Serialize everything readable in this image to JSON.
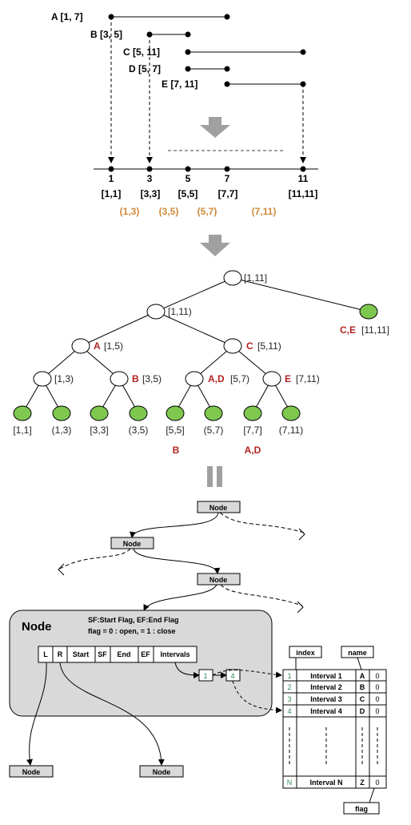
{
  "intervals": [
    {
      "label": "A [1, 7]"
    },
    {
      "label": "B [3, 5]"
    },
    {
      "label": "C [5, 11]"
    },
    {
      "label": "D [5, 7]"
    },
    {
      "label": "E [7, 11]"
    }
  ],
  "axis": {
    "ticks": [
      "1",
      "3",
      "5",
      "7",
      "11"
    ],
    "closed": [
      "[1,1]",
      "[3,3]",
      "[5,5]",
      "[7,7]",
      "[11,11]"
    ],
    "open": [
      "(1,3)",
      "(3,5)",
      "(5,7)",
      "(7,11)"
    ]
  },
  "tree": {
    "root": "[1,11]",
    "n1": "[1,11)",
    "n2_name": "C,E",
    "n2": "[11,11]",
    "n3_name": "A",
    "n3": "[1,5)",
    "n4_name": "C",
    "n4": "[5,11)",
    "n5": "[1,3)",
    "n6_name": "B",
    "n6": "[3,5)",
    "n7_name": "A,D",
    "n7": "[5,7)",
    "n8_name": "E",
    "n8": "[7,11)",
    "leaves": [
      "[1,1]",
      "(1,3)",
      "[3,3]",
      "(3,5)",
      "[5,5]",
      "(5,7)",
      "[7,7]",
      "(7,11)"
    ],
    "leaf_name_1": "B",
    "leaf_name_2": "A,D"
  },
  "structure": {
    "node_label": "Node",
    "big_node_title": "Node",
    "flags_line1": "SF:Start Flag,  EF:End Flag",
    "flags_line2": "flag = 0 : open,  = 1 : close",
    "fields": [
      "L",
      "R",
      "Start",
      "SF",
      "End",
      "EF",
      "Intervals"
    ],
    "list_items": [
      "1",
      "4"
    ],
    "index_label": "index",
    "name_label": "name",
    "flag_label": "flag",
    "table_rows": [
      {
        "index": "1",
        "interval": "Interval 1",
        "name": "A",
        "flag": "0"
      },
      {
        "index": "2",
        "interval": "Interval 2",
        "name": "B",
        "flag": "0"
      },
      {
        "index": "3",
        "interval": "Interval 3",
        "name": "C",
        "flag": "0"
      },
      {
        "index": "4",
        "interval": "Interval 4",
        "name": "D",
        "flag": "0"
      }
    ],
    "table_last": {
      "index": "N",
      "interval": "Interval N",
      "name": "Z",
      "flag": "0"
    }
  },
  "colors": {
    "leaf_fill": "#7ec850",
    "name_red": "#b22222",
    "open_orange": "#d08a3a",
    "box_gray": "#d9d9d9",
    "arrow_gray": "#a0a0a0"
  }
}
